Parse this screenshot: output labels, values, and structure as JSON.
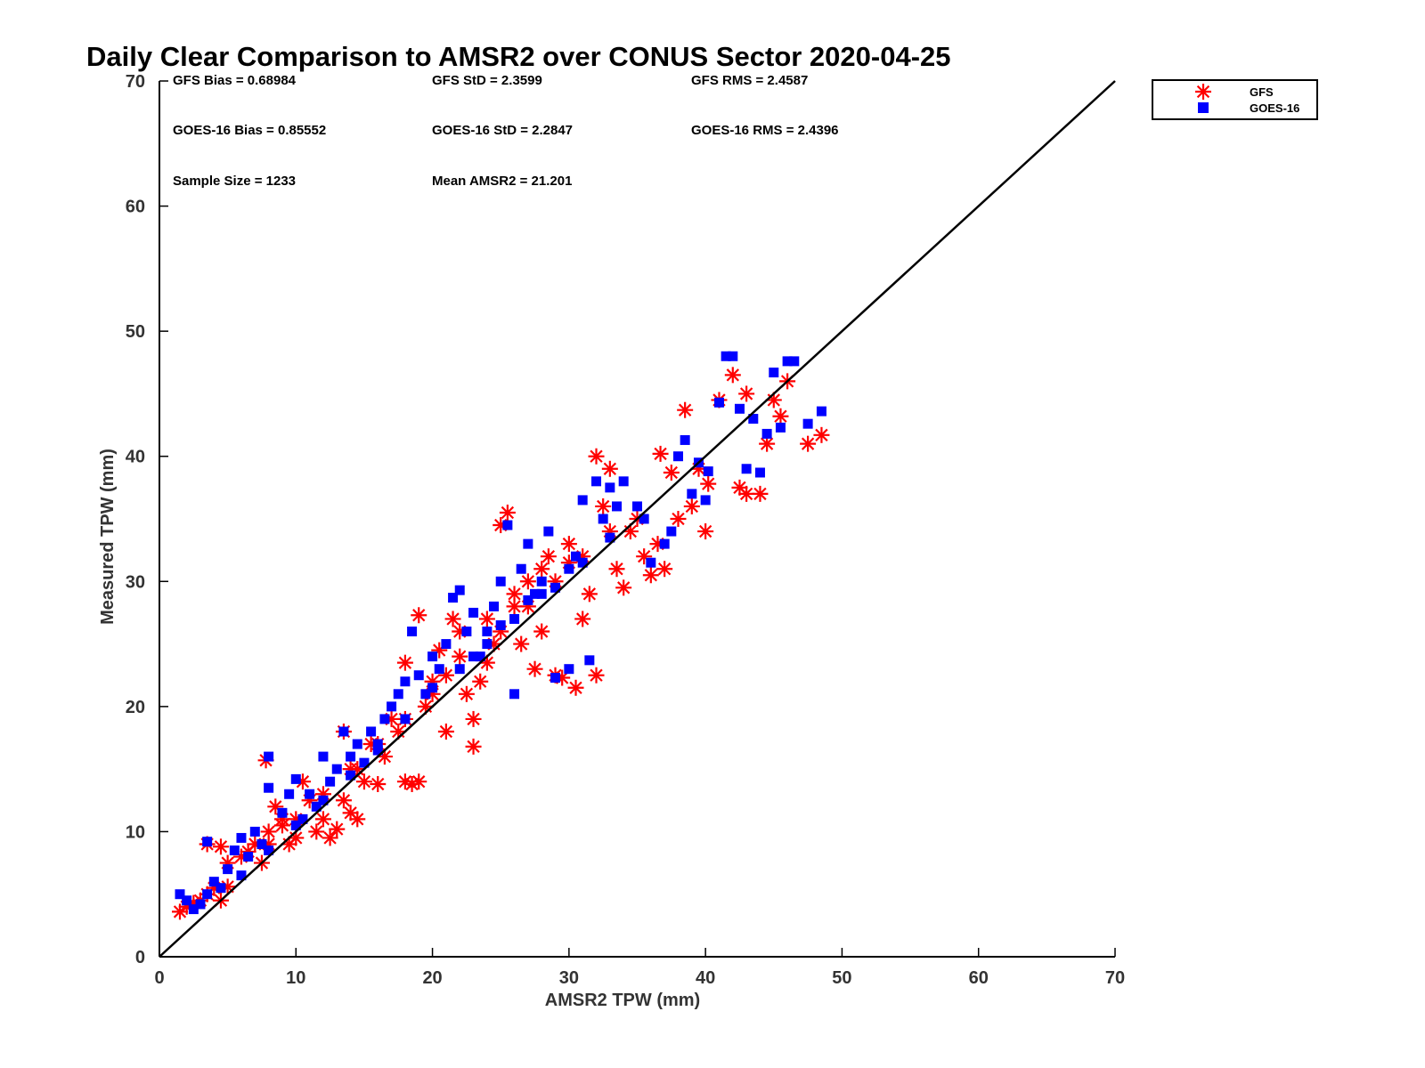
{
  "chart_data": {
    "type": "scatter",
    "title": "Daily Clear Comparison to AMSR2 over CONUS Sector 2020-04-25",
    "xlabel": "AMSR2 TPW (mm)",
    "ylabel": "Measured TPW (mm)",
    "xlim": [
      0,
      70
    ],
    "ylim": [
      0,
      70
    ],
    "x_ticks": [
      "0",
      "10",
      "20",
      "30",
      "40",
      "50",
      "60",
      "70"
    ],
    "y_ticks": [
      "0",
      "10",
      "20",
      "30",
      "40",
      "50",
      "60",
      "70"
    ],
    "grid": false,
    "legend_position": "top-right, outside plot",
    "reference_line": {
      "x": [
        0,
        70
      ],
      "y": [
        0,
        70
      ],
      "color": "#000000"
    },
    "colors": {
      "GFS": "#ff0000",
      "GOES-16": "#0000ff"
    },
    "stats": [
      "GFS Bias = 0.68984",
      "GFS StD = 2.3599",
      "GFS RMS = 2.4587",
      "GOES-16 Bias = 0.85552",
      "GOES-16 StD = 2.2847",
      "GOES-16 RMS = 2.4396",
      "Sample Size = 1233",
      "Mean AMSR2 = 21.201"
    ],
    "series": [
      {
        "name": "GFS",
        "marker": "asterisk",
        "points": [
          [
            1.5,
            3.6
          ],
          [
            2,
            4
          ],
          [
            2.5,
            4.3
          ],
          [
            3,
            4.5
          ],
          [
            3.5,
            5
          ],
          [
            4,
            5.5
          ],
          [
            4.5,
            4.5
          ],
          [
            5,
            5.6
          ],
          [
            3.5,
            9
          ],
          [
            4.5,
            8.8
          ],
          [
            5,
            7.5
          ],
          [
            6,
            8
          ],
          [
            6.5,
            8.4
          ],
          [
            7,
            9
          ],
          [
            7.5,
            7.5
          ],
          [
            7.8,
            15.7
          ],
          [
            8,
            10
          ],
          [
            8.5,
            12
          ],
          [
            9,
            10.5
          ],
          [
            9.5,
            9
          ],
          [
            10,
            9.5
          ],
          [
            10.5,
            14
          ],
          [
            11,
            12.5
          ],
          [
            11.5,
            10
          ],
          [
            12,
            11
          ],
          [
            12.5,
            9.5
          ],
          [
            13,
            10.2
          ],
          [
            13.5,
            12.5
          ],
          [
            14,
            11.5
          ],
          [
            14.5,
            11
          ],
          [
            13.5,
            18
          ],
          [
            14.5,
            15
          ],
          [
            15,
            14
          ],
          [
            15.5,
            17
          ],
          [
            16,
            13.8
          ],
          [
            16.5,
            16
          ],
          [
            17,
            19
          ],
          [
            17.5,
            18
          ],
          [
            18,
            14
          ],
          [
            18.5,
            13.8
          ],
          [
            19,
            14
          ],
          [
            19,
            27.3
          ],
          [
            18,
            23.5
          ],
          [
            19.5,
            20
          ],
          [
            20,
            22
          ],
          [
            20.5,
            24.5
          ],
          [
            21,
            18
          ],
          [
            21.5,
            27
          ],
          [
            22,
            26
          ],
          [
            22.5,
            21
          ],
          [
            23,
            19
          ],
          [
            23,
            16.8
          ],
          [
            23.5,
            22
          ],
          [
            24,
            23.5
          ],
          [
            24.5,
            25
          ],
          [
            25,
            34.5
          ],
          [
            25.5,
            35.5
          ],
          [
            26,
            28
          ],
          [
            26.5,
            25
          ],
          [
            27,
            30
          ],
          [
            27.5,
            23
          ],
          [
            28,
            26
          ],
          [
            28.5,
            32
          ],
          [
            29,
            22.5
          ],
          [
            29.5,
            22.3
          ],
          [
            30,
            33
          ],
          [
            30.5,
            21.5
          ],
          [
            31,
            27
          ],
          [
            31.5,
            29
          ],
          [
            32,
            40
          ],
          [
            32,
            22.5
          ],
          [
            32.5,
            36
          ],
          [
            33,
            39
          ],
          [
            33.5,
            31
          ],
          [
            34,
            29.5
          ],
          [
            34.5,
            34
          ],
          [
            35,
            35
          ],
          [
            35.5,
            32
          ],
          [
            36,
            30.5
          ],
          [
            36.5,
            33
          ],
          [
            36.7,
            40.2
          ],
          [
            37,
            31
          ],
          [
            37.5,
            38.7
          ],
          [
            38,
            35
          ],
          [
            38.5,
            43.7
          ],
          [
            39,
            36
          ],
          [
            39.5,
            39
          ],
          [
            40,
            34
          ],
          [
            40.2,
            37.8
          ],
          [
            41,
            44.5
          ],
          [
            42,
            46.5
          ],
          [
            42.5,
            37.5
          ],
          [
            43,
            45
          ],
          [
            43,
            37
          ],
          [
            44,
            37
          ],
          [
            44.5,
            41
          ],
          [
            45,
            44.5
          ],
          [
            45.5,
            43.2
          ],
          [
            46,
            46
          ],
          [
            47.5,
            41
          ],
          [
            48.5,
            41.7
          ],
          [
            26,
            29
          ],
          [
            28,
            31
          ],
          [
            30,
            31.5
          ],
          [
            22,
            24
          ],
          [
            24,
            27
          ],
          [
            20,
            21
          ],
          [
            16,
            17
          ],
          [
            12,
            13
          ],
          [
            9,
            11
          ],
          [
            8,
            9
          ],
          [
            10,
            11
          ],
          [
            14,
            15
          ],
          [
            18,
            19
          ],
          [
            25,
            26
          ],
          [
            27,
            28
          ],
          [
            29,
            30
          ],
          [
            31,
            32
          ],
          [
            33,
            34
          ],
          [
            21,
            22.5
          ]
        ]
      },
      {
        "name": "GOES-16",
        "marker": "square",
        "points": [
          [
            1.5,
            5
          ],
          [
            2,
            4.5
          ],
          [
            2.5,
            3.8
          ],
          [
            3,
            4.2
          ],
          [
            3.5,
            5
          ],
          [
            4,
            6
          ],
          [
            4.5,
            5.5
          ],
          [
            5,
            7
          ],
          [
            3.5,
            9.2
          ],
          [
            5.5,
            8.5
          ],
          [
            6,
            9.5
          ],
          [
            6.5,
            8
          ],
          [
            7,
            10
          ],
          [
            7.5,
            9
          ],
          [
            8,
            13.5
          ],
          [
            8,
            16
          ],
          [
            9,
            11.5
          ],
          [
            9.5,
            13
          ],
          [
            10,
            14.2
          ],
          [
            10.5,
            11
          ],
          [
            11,
            13
          ],
          [
            11.5,
            12
          ],
          [
            12,
            16
          ],
          [
            12.5,
            14
          ],
          [
            13,
            15
          ],
          [
            13.5,
            18
          ],
          [
            14,
            16
          ],
          [
            14.5,
            17
          ],
          [
            15,
            15.5
          ],
          [
            15.5,
            18
          ],
          [
            16,
            17
          ],
          [
            16.5,
            19
          ],
          [
            17,
            20
          ],
          [
            17.5,
            21
          ],
          [
            18,
            22
          ],
          [
            18.5,
            26
          ],
          [
            19,
            22.5
          ],
          [
            19.5,
            21
          ],
          [
            20,
            24
          ],
          [
            20.5,
            23
          ],
          [
            21,
            25
          ],
          [
            21.5,
            28.7
          ],
          [
            22,
            29.3
          ],
          [
            22.5,
            26
          ],
          [
            23,
            27.5
          ],
          [
            23.5,
            24
          ],
          [
            24,
            26
          ],
          [
            24.5,
            28
          ],
          [
            25,
            30
          ],
          [
            25.5,
            34.5
          ],
          [
            26,
            21
          ],
          [
            26.5,
            31
          ],
          [
            27,
            33
          ],
          [
            27.5,
            29
          ],
          [
            28,
            30
          ],
          [
            28.5,
            34
          ],
          [
            29,
            22.3
          ],
          [
            30,
            23
          ],
          [
            30.5,
            32
          ],
          [
            31,
            36.5
          ],
          [
            31.5,
            23.7
          ],
          [
            32,
            38
          ],
          [
            32.5,
            35
          ],
          [
            33,
            37.5
          ],
          [
            33.5,
            36
          ],
          [
            34,
            38
          ],
          [
            35,
            36
          ],
          [
            35.5,
            35
          ],
          [
            36,
            31.5
          ],
          [
            37,
            33
          ],
          [
            37.5,
            34
          ],
          [
            38,
            40
          ],
          [
            38.5,
            41.3
          ],
          [
            39,
            37
          ],
          [
            39.5,
            39.5
          ],
          [
            40,
            36.5
          ],
          [
            40.2,
            38.8
          ],
          [
            41,
            44.3
          ],
          [
            41.5,
            48
          ],
          [
            42,
            48
          ],
          [
            42.5,
            43.8
          ],
          [
            43,
            39
          ],
          [
            43.5,
            43
          ],
          [
            44,
            38.7
          ],
          [
            44.5,
            41.8
          ],
          [
            45,
            46.7
          ],
          [
            45.5,
            42.3
          ],
          [
            46,
            47.6
          ],
          [
            46.5,
            47.6
          ],
          [
            47.5,
            42.6
          ],
          [
            48.5,
            43.6
          ],
          [
            24,
            25
          ],
          [
            26,
            27
          ],
          [
            28,
            29
          ],
          [
            30,
            31
          ],
          [
            22,
            23
          ],
          [
            20,
            21.5
          ],
          [
            18,
            19
          ],
          [
            16,
            16.5
          ],
          [
            14,
            14.5
          ],
          [
            12,
            12.5
          ],
          [
            10,
            10.5
          ],
          [
            8,
            8.5
          ],
          [
            6,
            6.5
          ],
          [
            27,
            28.5
          ],
          [
            29,
            29.5
          ],
          [
            31,
            31.5
          ],
          [
            33,
            33.5
          ],
          [
            23,
            24
          ],
          [
            25,
            26.5
          ]
        ]
      }
    ]
  }
}
